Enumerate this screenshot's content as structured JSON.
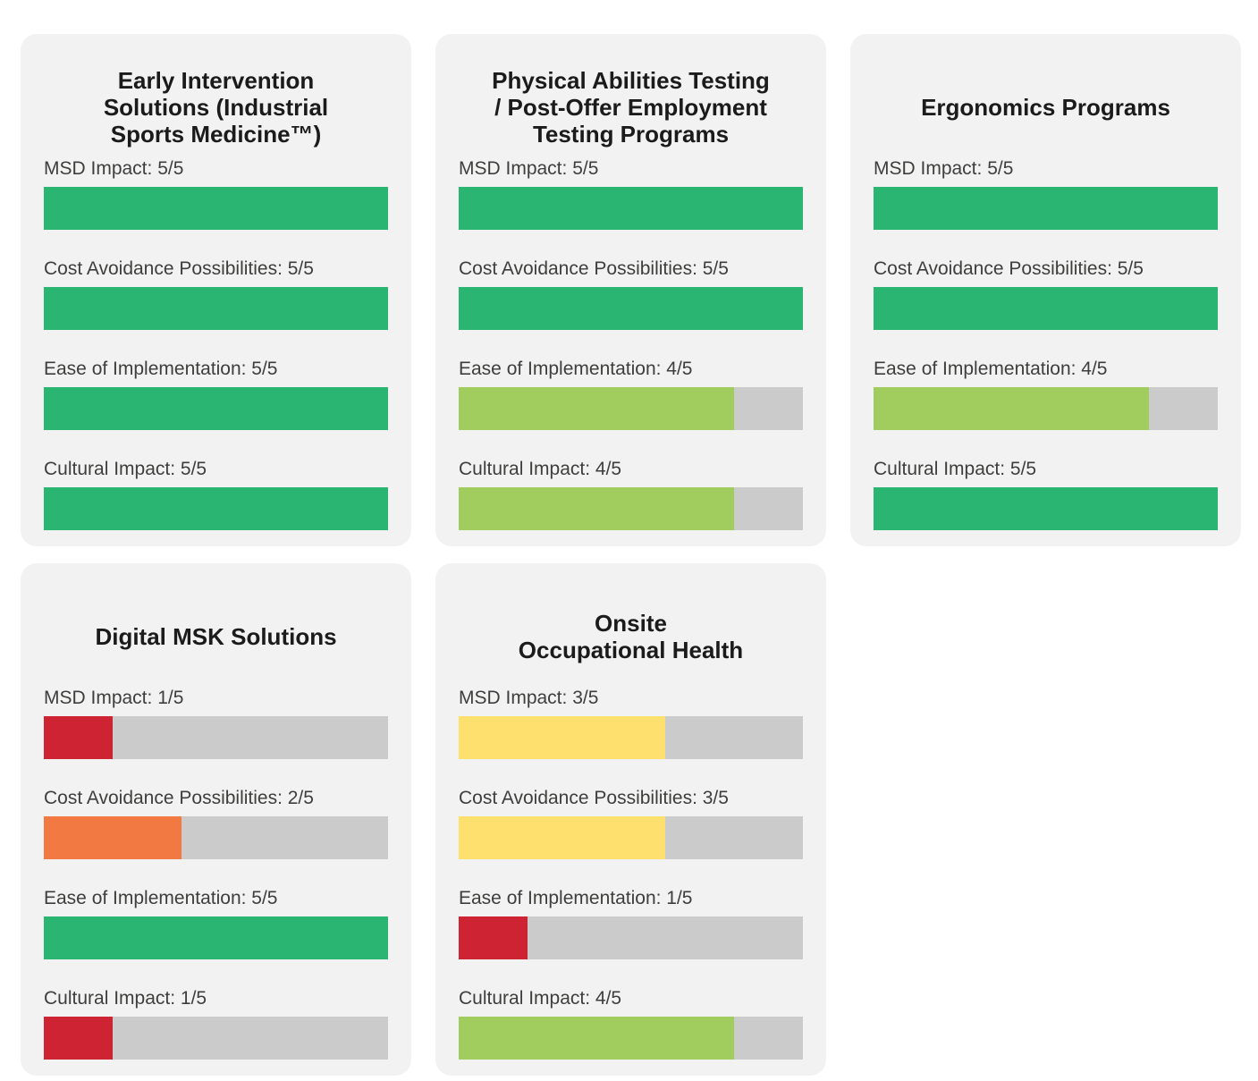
{
  "infographic": {
    "background": "#ffffff",
    "card_background": "#f2f2f2",
    "title_color": "#1b1b1b",
    "label_color": "#3e3e3d",
    "rating_scale_max": 5
  },
  "colors": {
    "green": "#2ab573",
    "light_green": "#a0cd5e",
    "yellow": "#fde06e",
    "orange": "#f27a42",
    "red": "#cd2332",
    "track": "#cbcbcb"
  },
  "cards": [
    {
      "title": "Early Intervention Solutions (Industrial Sports Medicine™)",
      "title_lines": [
        "Early Intervention",
        "Solutions (Industrial",
        "Sports Medicine™)"
      ],
      "metrics": [
        {
          "label": "MSD Impact: 5/5",
          "value": 5,
          "max": 5,
          "color": "green"
        },
        {
          "label": "Cost Avoidance Possibilities: 5/5",
          "value": 5,
          "max": 5,
          "color": "green"
        },
        {
          "label": "Ease of Implementation: 5/5",
          "value": 5,
          "max": 5,
          "color": "green"
        },
        {
          "label": "Cultural Impact: 5/5",
          "value": 5,
          "max": 5,
          "color": "green"
        }
      ]
    },
    {
      "title": "Physical Abilities Testing / Post-Offer Employment Testing Programs",
      "title_lines": [
        "Physical Abilities Testing",
        "/ Post-Offer Employment",
        "Testing Programs"
      ],
      "metrics": [
        {
          "label": "MSD Impact: 5/5",
          "value": 5,
          "max": 5,
          "color": "green"
        },
        {
          "label": "Cost Avoidance Possibilities: 5/5",
          "value": 5,
          "max": 5,
          "color": "green"
        },
        {
          "label": "Ease of Implementation: 4/5",
          "value": 4,
          "max": 5,
          "color": "light_green"
        },
        {
          "label": "Cultural Impact: 4/5",
          "value": 4,
          "max": 5,
          "color": "light_green"
        }
      ]
    },
    {
      "title": "Ergonomics Programs",
      "title_lines": [
        "Ergonomics Programs"
      ],
      "metrics": [
        {
          "label": "MSD Impact: 5/5",
          "value": 5,
          "max": 5,
          "color": "green"
        },
        {
          "label": "Cost Avoidance Possibilities: 5/5",
          "value": 5,
          "max": 5,
          "color": "green"
        },
        {
          "label": "Ease of Implementation: 4/5",
          "value": 4,
          "max": 5,
          "color": "light_green"
        },
        {
          "label": "Cultural Impact: 5/5",
          "value": 5,
          "max": 5,
          "color": "green"
        }
      ]
    },
    {
      "title": "Digital MSK Solutions",
      "title_lines": [
        "Digital MSK Solutions"
      ],
      "metrics": [
        {
          "label": "MSD Impact: 1/5",
          "value": 1,
          "max": 5,
          "color": "red"
        },
        {
          "label": "Cost Avoidance Possibilities: 2/5",
          "value": 2,
          "max": 5,
          "color": "orange"
        },
        {
          "label": "Ease of Implementation: 5/5",
          "value": 5,
          "max": 5,
          "color": "green"
        },
        {
          "label": "Cultural Impact: 1/5",
          "value": 1,
          "max": 5,
          "color": "red"
        }
      ]
    },
    {
      "title": "Onsite Occupational Health",
      "title_lines": [
        "Onsite",
        "Occupational Health"
      ],
      "metrics": [
        {
          "label": "MSD Impact: 3/5",
          "value": 3,
          "max": 5,
          "color": "yellow"
        },
        {
          "label": "Cost Avoidance Possibilities: 3/5",
          "value": 3,
          "max": 5,
          "color": "yellow"
        },
        {
          "label": "Ease of Implementation: 1/5",
          "value": 1,
          "max": 5,
          "color": "red"
        },
        {
          "label": "Cultural Impact: 4/5",
          "value": 4,
          "max": 5,
          "color": "light_green"
        }
      ]
    }
  ],
  "chart_data": [
    {
      "type": "bar",
      "orientation": "horizontal",
      "title": "Early Intervention Solutions (Industrial Sports Medicine™)",
      "categories": [
        "MSD Impact",
        "Cost Avoidance Possibilities",
        "Ease of Implementation",
        "Cultural Impact"
      ],
      "values": [
        5,
        5,
        5,
        5
      ],
      "xlim": [
        0,
        5
      ],
      "grid": false,
      "legend": false
    },
    {
      "type": "bar",
      "orientation": "horizontal",
      "title": "Physical Abilities Testing / Post-Offer Employment Testing Programs",
      "categories": [
        "MSD Impact",
        "Cost Avoidance Possibilities",
        "Ease of Implementation",
        "Cultural Impact"
      ],
      "values": [
        5,
        5,
        4,
        4
      ],
      "xlim": [
        0,
        5
      ],
      "grid": false,
      "legend": false
    },
    {
      "type": "bar",
      "orientation": "horizontal",
      "title": "Ergonomics Programs",
      "categories": [
        "MSD Impact",
        "Cost Avoidance Possibilities",
        "Ease of Implementation",
        "Cultural Impact"
      ],
      "values": [
        5,
        5,
        4,
        5
      ],
      "xlim": [
        0,
        5
      ],
      "grid": false,
      "legend": false
    },
    {
      "type": "bar",
      "orientation": "horizontal",
      "title": "Digital MSK Solutions",
      "categories": [
        "MSD Impact",
        "Cost Avoidance Possibilities",
        "Ease of Implementation",
        "Cultural Impact"
      ],
      "values": [
        1,
        2,
        5,
        1
      ],
      "xlim": [
        0,
        5
      ],
      "grid": false,
      "legend": false
    },
    {
      "type": "bar",
      "orientation": "horizontal",
      "title": "Onsite Occupational Health",
      "categories": [
        "MSD Impact",
        "Cost Avoidance Possibilities",
        "Ease of Implementation",
        "Cultural Impact"
      ],
      "values": [
        3,
        3,
        1,
        4
      ],
      "xlim": [
        0,
        5
      ],
      "grid": false,
      "legend": false
    }
  ]
}
